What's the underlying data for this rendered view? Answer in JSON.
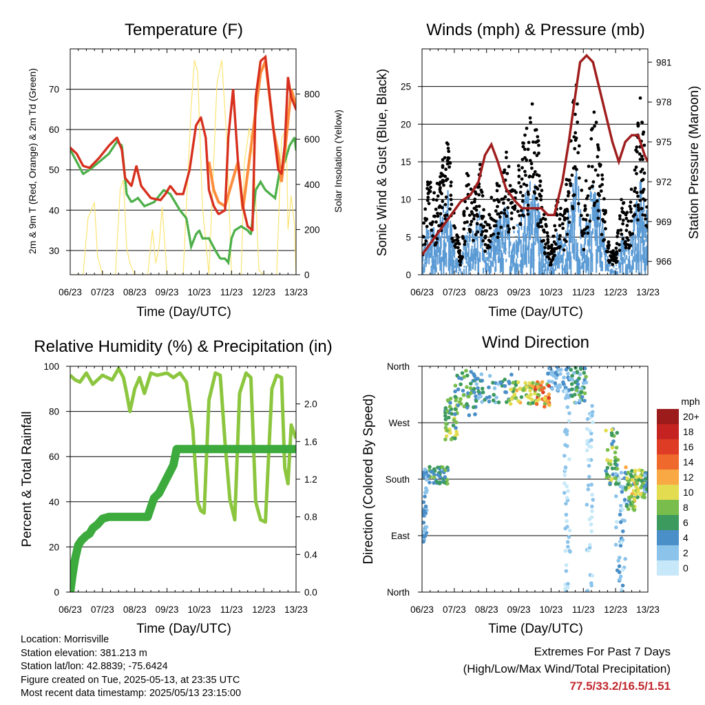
{
  "colors": {
    "t2m": "#d7301f",
    "t9m": "#fd8d3c",
    "td": "#4daf4a",
    "solar": "#fce67a",
    "wind": "#5b9bd5",
    "gust": "#000000",
    "pressure": "#a01e1e",
    "rh": "#8cc63f",
    "precip": "#3caa3c",
    "extreme_text": "#c0272d"
  },
  "x_ticks": [
    "06/23",
    "07/23",
    "08/23",
    "09/23",
    "10/23",
    "11/23",
    "12/23",
    "13/23"
  ],
  "footer": {
    "location": "Location: Morrisville",
    "elevation": "Station elevation: 381.213 m",
    "latlon": "Station lat/lon: 42.8839; -75.6424",
    "created": "Figure created on Tue, 2025-05-13, at 23:35 UTC",
    "recent": "Most recent data timestamp: 2025/05/13 23:15:00"
  },
  "extremes": {
    "title": "Extremes For Past 7 Days",
    "subtitle": "(High/Low/Max Wind/Total Precipitation)",
    "values": "77.5/33.2/16.5/1.51"
  },
  "chart_data": [
    {
      "type": "line",
      "title": "Temperature (F)",
      "xlabel": "Time (Day/UTC)",
      "ylabel": "2m & 9m T (Red, Orange) & 2m Td (Green)",
      "y2label": "Solar Insolation (Yellow)",
      "xlim": [
        0,
        7
      ],
      "ylim": [
        24,
        80
      ],
      "y2lim": [
        0,
        1000
      ],
      "yticks": [
        30,
        40,
        50,
        60,
        70
      ],
      "y2ticks": [
        0,
        200,
        400,
        600,
        800
      ],
      "series": [
        {
          "role": "t2m",
          "x": [
            0,
            0.2,
            0.4,
            0.6,
            0.9,
            1.2,
            1.45,
            1.6,
            1.7,
            1.8,
            1.9,
            2.05,
            2.2,
            2.5,
            2.8,
            2.95,
            3.1,
            3.3,
            3.5,
            3.7,
            3.9,
            4.05,
            4.2,
            4.3,
            4.45,
            4.6,
            4.8,
            4.9,
            5.05,
            5.2,
            5.35,
            5.5,
            5.65,
            5.75,
            5.9,
            6.05,
            6.3,
            6.45,
            6.55,
            6.65,
            6.75,
            6.85,
            7.0
          ],
          "y": [
            55.5,
            54,
            51,
            50.5,
            53,
            56,
            58,
            55,
            48,
            47,
            46,
            51,
            46,
            43,
            42.5,
            44,
            46,
            44,
            44,
            50,
            61,
            63,
            58,
            45,
            41,
            39,
            40,
            58,
            70,
            52,
            41,
            36,
            35,
            68,
            77,
            78,
            60,
            50,
            49,
            56,
            73,
            68,
            65
          ]
        },
        {
          "role": "t9m",
          "x": [
            4.3,
            4.45,
            4.6,
            4.8,
            5.2,
            5.35,
            5.9,
            6.05,
            6.3,
            6.45,
            6.55,
            6.7,
            6.85,
            7.0
          ],
          "y": [
            52,
            45,
            42,
            41,
            52,
            40,
            74,
            77,
            60,
            54,
            47,
            58,
            70,
            66
          ]
        },
        {
          "role": "td",
          "x": [
            0,
            0.2,
            0.4,
            0.6,
            0.9,
            1.2,
            1.45,
            1.6,
            1.75,
            1.9,
            2.1,
            2.3,
            2.6,
            2.9,
            3.1,
            3.4,
            3.6,
            3.75,
            3.9,
            4.0,
            4.1,
            4.3,
            4.5,
            4.65,
            4.8,
            4.9,
            5.0,
            5.1,
            5.3,
            5.5,
            5.6,
            5.75,
            5.9,
            6.05,
            6.2,
            6.35,
            6.5,
            6.65,
            6.8,
            6.95,
            7.0
          ],
          "y": [
            55,
            52,
            49,
            50,
            52,
            54,
            57,
            56,
            44,
            42,
            43,
            41,
            42,
            45,
            44,
            40,
            38,
            31,
            34,
            35,
            33,
            33,
            30,
            28,
            28,
            27,
            33,
            35,
            36,
            35,
            34,
            45,
            47,
            45,
            44,
            43,
            50,
            52,
            56,
            58,
            55
          ]
        },
        {
          "role": "solar",
          "x": [
            0,
            0.4,
            0.55,
            0.75,
            0.85,
            1.0,
            1.4,
            1.55,
            1.65,
            1.75,
            1.85,
            2.0,
            2.4,
            2.55,
            2.65,
            2.75,
            2.85,
            3.0,
            3.5,
            3.75,
            3.85,
            3.95,
            4.1,
            4.3,
            4.55,
            4.7,
            4.85,
            5.0,
            5.3,
            5.4,
            5.55,
            5.7,
            5.85,
            6.0,
            6.4,
            6.55,
            6.7,
            6.75,
            6.85,
            6.95,
            7.0
          ],
          "y": [
            0,
            0,
            250,
            320,
            80,
            0,
            0,
            380,
            420,
            120,
            50,
            0,
            0,
            200,
            50,
            120,
            300,
            0,
            0,
            750,
            950,
            900,
            300,
            0,
            850,
            950,
            600,
            0,
            0,
            500,
            650,
            500,
            20,
            0,
            0,
            600,
            650,
            200,
            350,
            220,
            0
          ]
        }
      ]
    },
    {
      "type": "scatter",
      "title": "Winds (mph) & Pressure (mb)",
      "xlabel": "Time (Day/UTC)",
      "ylabel": "Sonic Wind & Gust (Blue, Black)",
      "y2label": "Station Pressure (Maroon)",
      "xlim": [
        0,
        7
      ],
      "ylim": [
        0,
        30
      ],
      "y2lim": [
        965,
        982
      ],
      "yticks": [
        0,
        5,
        10,
        15,
        20,
        25
      ],
      "y2ticks": [
        966,
        969,
        972,
        975,
        978,
        981
      ],
      "series": [
        {
          "role": "pressure",
          "x": [
            0,
            0.3,
            0.6,
            0.9,
            1.2,
            1.5,
            1.75,
            1.95,
            2.15,
            2.35,
            2.6,
            2.9,
            3.1,
            3.3,
            3.5,
            3.7,
            3.9,
            4.1,
            4.35,
            4.55,
            4.75,
            4.9,
            5.1,
            5.3,
            5.5,
            5.7,
            5.9,
            6.1,
            6.3,
            6.5,
            6.7,
            6.9,
            7.0
          ],
          "y": [
            966.5,
            967.5,
            968.5,
            969.5,
            970.5,
            971,
            972,
            974,
            974.8,
            973.5,
            971.5,
            970.5,
            970,
            970,
            970,
            970,
            969.5,
            969.5,
            972,
            975,
            978.5,
            981,
            981.5,
            981,
            979,
            977,
            975,
            973.5,
            975,
            975.5,
            975.5,
            974,
            973.5
          ]
        },
        {
          "role": "wind_envelope",
          "x": [
            0,
            0.2,
            0.4,
            0.6,
            0.8,
            1.0,
            1.2,
            1.4,
            1.6,
            1.8,
            2.0,
            2.2,
            2.4,
            2.6,
            2.8,
            3.0,
            3.2,
            3.4,
            3.6,
            3.8,
            4.0,
            4.2,
            4.4,
            4.6,
            4.8,
            5.0,
            5.2,
            5.4,
            5.6,
            5.8,
            6.0,
            6.2,
            6.4,
            6.6,
            6.8,
            7.0
          ],
          "y": [
            3,
            8,
            6,
            9,
            12,
            4,
            1,
            8,
            6,
            9,
            3,
            6,
            8,
            10,
            6,
            8,
            11,
            14,
            10,
            4,
            1,
            6,
            4,
            11,
            16,
            4,
            11,
            13,
            7,
            2,
            1,
            6,
            4,
            9,
            14,
            8
          ]
        },
        {
          "role": "gust_envelope",
          "x": [
            0,
            0.2,
            0.4,
            0.6,
            0.8,
            1.0,
            1.2,
            1.4,
            1.6,
            1.8,
            2.0,
            2.2,
            2.4,
            2.6,
            2.8,
            3.0,
            3.2,
            3.4,
            3.6,
            3.8,
            4.0,
            4.2,
            4.4,
            4.6,
            4.8,
            5.0,
            5.2,
            5.4,
            5.6,
            5.8,
            6.0,
            6.2,
            6.4,
            6.6,
            6.8,
            7.0
          ],
          "y": [
            6,
            14,
            11,
            15,
            19,
            8,
            3,
            14,
            11,
            15,
            6,
            12,
            14,
            17,
            12,
            15,
            19,
            24,
            18,
            8,
            3,
            11,
            8,
            20,
            27,
            8,
            19,
            23,
            13,
            4,
            3,
            11,
            8,
            17,
            25,
            14
          ]
        }
      ]
    },
    {
      "type": "line",
      "title": "Relative Humidity (%) & Precipitation (in)",
      "xlabel": "Time (Day/UTC)",
      "ylabel": "Percent & Total Rainfall",
      "xlim": [
        0,
        7
      ],
      "ylim": [
        0,
        100
      ],
      "y2lim": [
        0,
        2.4
      ],
      "yticks": [
        0,
        20,
        40,
        60,
        80,
        100
      ],
      "y2ticks": [
        0.0,
        0.4,
        0.8,
        1.2,
        1.6,
        2.0
      ],
      "series": [
        {
          "role": "rh",
          "x": [
            0,
            0.15,
            0.3,
            0.5,
            0.7,
            1.0,
            1.3,
            1.5,
            1.65,
            1.75,
            1.85,
            2.0,
            2.15,
            2.3,
            2.5,
            2.7,
            3.0,
            3.2,
            3.4,
            3.6,
            3.8,
            3.95,
            4.05,
            4.15,
            4.3,
            4.5,
            4.65,
            4.8,
            4.95,
            5.1,
            5.25,
            5.45,
            5.6,
            5.75,
            5.9,
            6.05,
            6.25,
            6.4,
            6.55,
            6.65,
            6.75,
            6.85,
            7.0
          ],
          "y": [
            96,
            94,
            93,
            97,
            92,
            96,
            94,
            99,
            95,
            88,
            80,
            90,
            95,
            88,
            97,
            96,
            97,
            95,
            97,
            93,
            72,
            40,
            36,
            35,
            85,
            97,
            96,
            66,
            41,
            32,
            88,
            97,
            95,
            40,
            32,
            31,
            90,
            96,
            95,
            55,
            48,
            74,
            68
          ]
        },
        {
          "role": "precip",
          "x": [
            0,
            0.08,
            0.15,
            0.25,
            0.35,
            0.5,
            0.6,
            0.7,
            0.85,
            1.0,
            1.2,
            1.5,
            2.0,
            2.4,
            2.5,
            2.6,
            2.75,
            2.9,
            3.05,
            3.2,
            3.3,
            3.5,
            4.0,
            5.0,
            6.0,
            7.0
          ],
          "y": [
            0,
            0.2,
            0.35,
            0.5,
            0.55,
            0.6,
            0.62,
            0.68,
            0.72,
            0.78,
            0.8,
            0.8,
            0.8,
            0.8,
            0.9,
            1.0,
            1.05,
            1.15,
            1.25,
            1.35,
            1.52,
            1.52,
            1.52,
            1.52,
            1.52,
            1.52
          ]
        }
      ]
    },
    {
      "type": "scatter",
      "title": "Wind Direction",
      "xlabel": "Time (Day/UTC)",
      "ylabel": "Direction (Colored By Speed)",
      "xlim": [
        0,
        7
      ],
      "ylim": [
        0,
        360
      ],
      "ytick_labels": [
        "North",
        "East",
        "South",
        "West",
        "North"
      ],
      "yticks": [
        0,
        90,
        180,
        270,
        360
      ],
      "legend_title": "mph",
      "legend_labels": [
        "0",
        "2",
        "4",
        "6",
        "8",
        "10",
        "12",
        "14",
        "16",
        "18",
        "20+"
      ],
      "legend_colors": [
        "#c6e8f8",
        "#8cc3ea",
        "#4b8fc8",
        "#3c9a5f",
        "#79bd4d",
        "#e3dc50",
        "#f9a943",
        "#f0692c",
        "#de3c24",
        "#c42322",
        "#9c1b1b"
      ],
      "clusters": [
        {
          "x": [
            0.0,
            0.15
          ],
          "dir": [
            80,
            200
          ],
          "speed": [
            1,
            5
          ]
        },
        {
          "x": [
            0.2,
            0.8
          ],
          "dir": [
            170,
            200
          ],
          "speed": [
            3,
            8
          ]
        },
        {
          "x": [
            0.7,
            1.1
          ],
          "dir": [
            240,
            310
          ],
          "speed": [
            4,
            10
          ]
        },
        {
          "x": [
            1.0,
            1.7
          ],
          "dir": [
            280,
            355
          ],
          "speed": [
            3,
            9
          ]
        },
        {
          "x": [
            1.6,
            2.8
          ],
          "dir": [
            300,
            350
          ],
          "speed": [
            2,
            7
          ]
        },
        {
          "x": [
            2.7,
            3.5
          ],
          "dir": [
            300,
            335
          ],
          "speed": [
            6,
            12
          ]
        },
        {
          "x": [
            3.5,
            3.95
          ],
          "dir": [
            295,
            335
          ],
          "speed": [
            8,
            18
          ]
        },
        {
          "x": [
            3.9,
            4.6
          ],
          "dir": [
            320,
            360
          ],
          "speed": [
            1,
            4
          ]
        },
        {
          "x": [
            4.4,
            4.6
          ],
          "dir": [
            0,
            360
          ],
          "speed": [
            0,
            3
          ]
        },
        {
          "x": [
            4.6,
            5.1
          ],
          "dir": [
            300,
            360
          ],
          "speed": [
            2,
            8
          ]
        },
        {
          "x": [
            5.1,
            5.3
          ],
          "dir": [
            0,
            300
          ],
          "speed": [
            0,
            3
          ]
        },
        {
          "x": [
            5.7,
            6.1
          ],
          "dir": [
            170,
            260
          ],
          "speed": [
            3,
            10
          ]
        },
        {
          "x": [
            6.0,
            6.3
          ],
          "dir": [
            0,
            200
          ],
          "speed": [
            0,
            4
          ]
        },
        {
          "x": [
            6.3,
            6.6
          ],
          "dir": [
            130,
            200
          ],
          "speed": [
            4,
            12
          ]
        },
        {
          "x": [
            6.6,
            6.9
          ],
          "dir": [
            150,
            195
          ],
          "speed": [
            6,
            12
          ]
        },
        {
          "x": [
            6.9,
            7.0
          ],
          "dir": [
            160,
            190
          ],
          "speed": [
            2,
            6
          ]
        }
      ]
    }
  ]
}
